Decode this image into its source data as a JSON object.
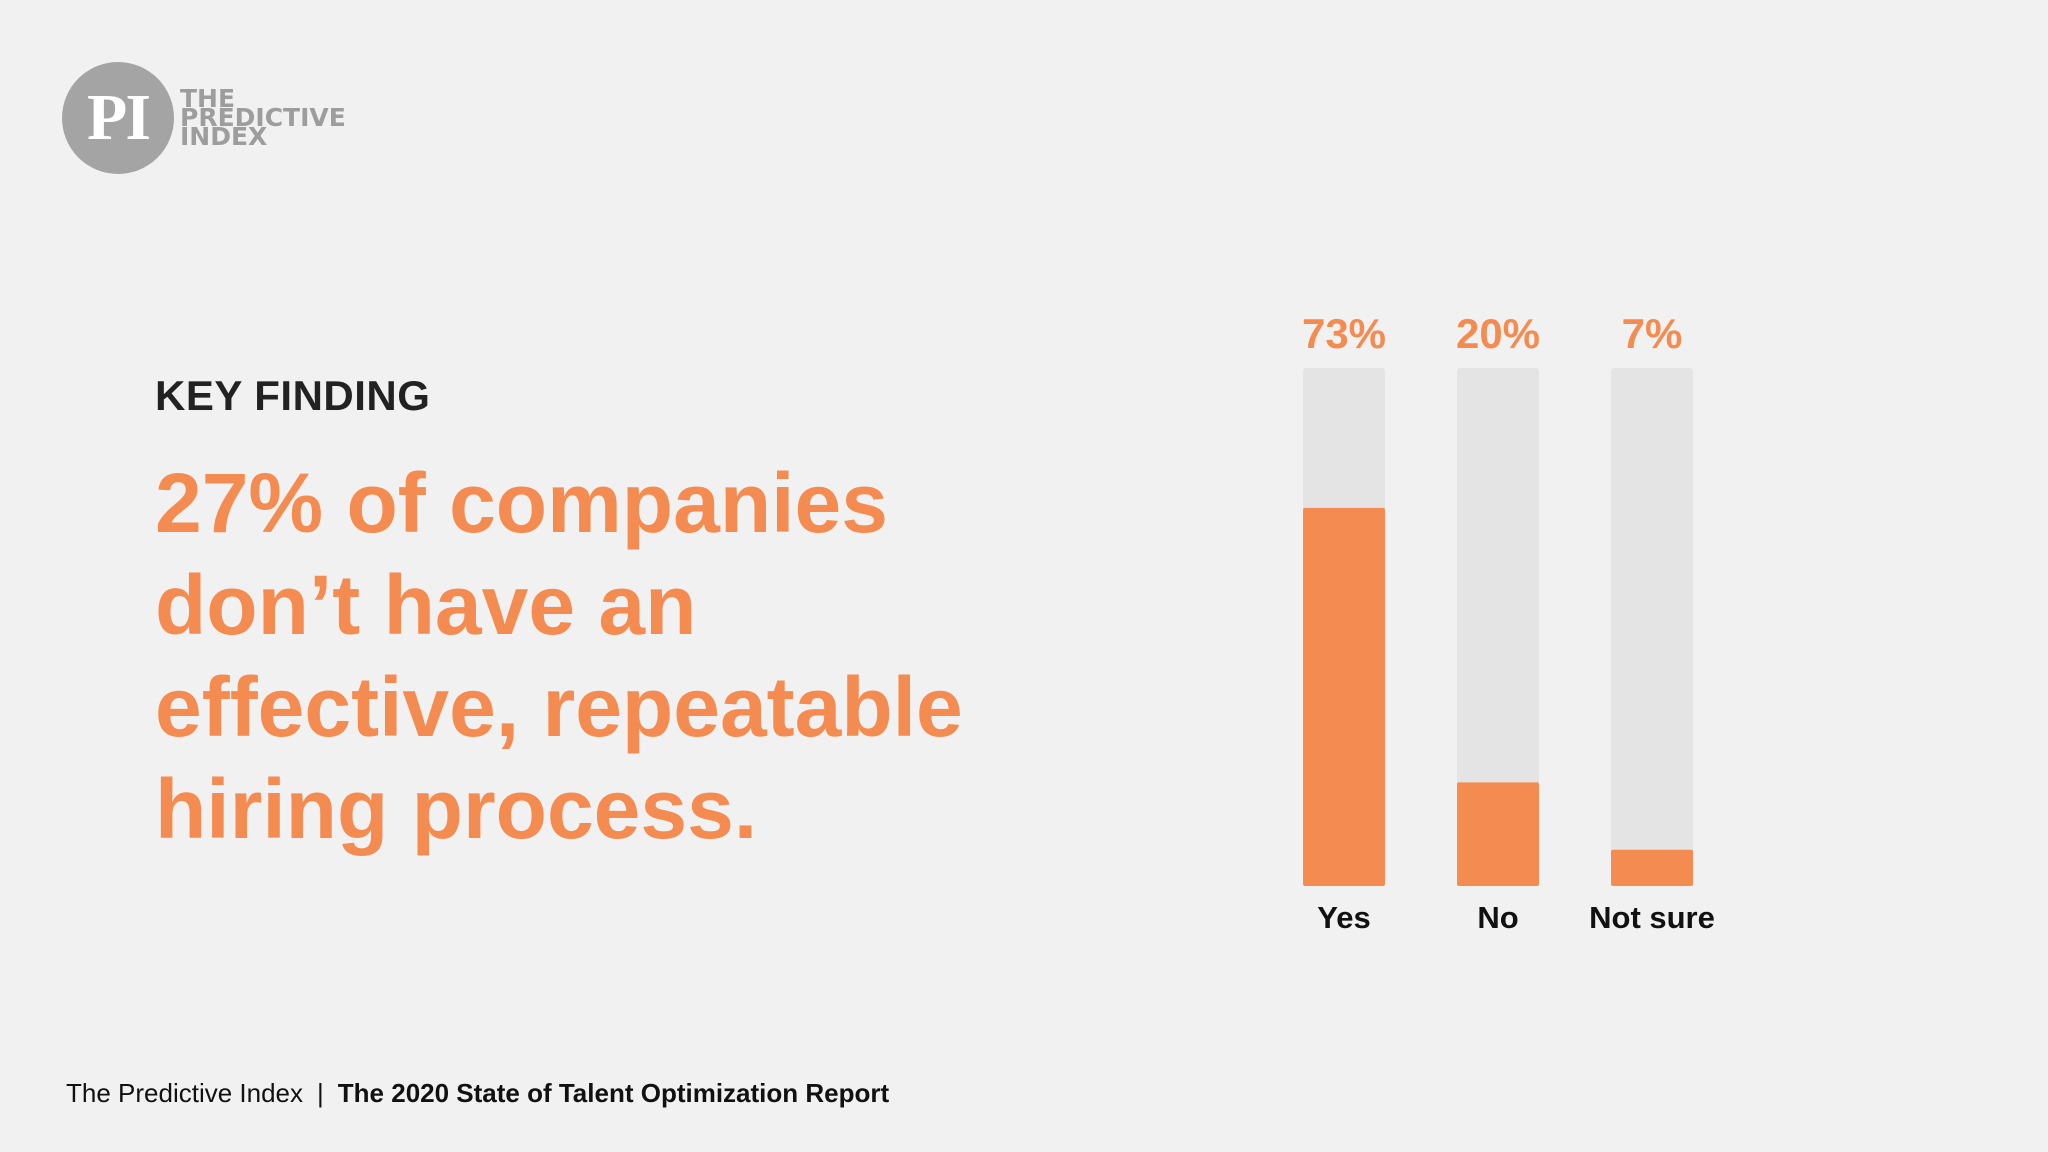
{
  "logo": {
    "mark": "PI",
    "words": [
      "THE",
      "PREDICTIVE",
      "INDEX"
    ]
  },
  "key_finding_label": "KEY FINDING",
  "headline_lines": [
    "27% of companies",
    "don’t have an",
    "effective, repeatable",
    "hiring process."
  ],
  "footer": {
    "brand": "The Predictive Index",
    "separator": "|",
    "report": "The 2020 State of Talent Optimization Report"
  },
  "colors": {
    "accent": "#f48c52",
    "track": "#e4e4e5",
    "background": "#f2f1f1",
    "text_dark": "#222222"
  },
  "chart_data": {
    "type": "bar",
    "categories": [
      "Yes",
      "No",
      "Not sure"
    ],
    "values": [
      73,
      20,
      7
    ],
    "value_labels": [
      "73%",
      "20%",
      "7%"
    ],
    "ylim": [
      0,
      100
    ],
    "title": "",
    "xlabel": "",
    "ylabel": "",
    "grid": false
  }
}
